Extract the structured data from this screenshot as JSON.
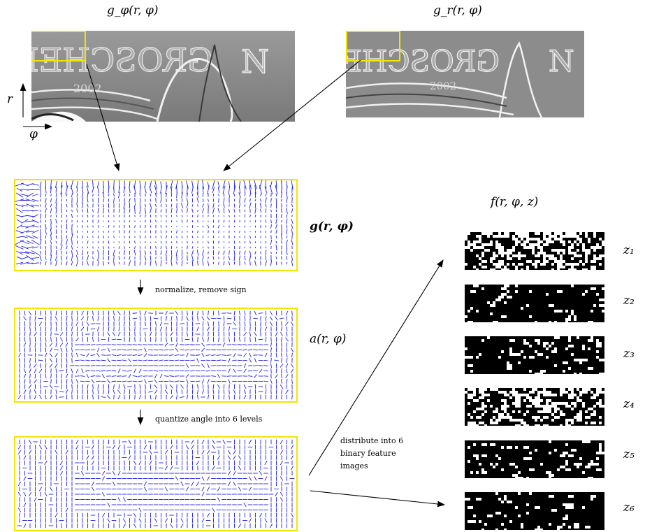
{
  "labels": {
    "g_phi": "g_φ(r, φ)",
    "g_r": "g_r(r, φ)",
    "axis_r": "r",
    "axis_phi": "φ",
    "g_vec": "g(r, φ)",
    "a_field": "a(r, φ)",
    "f_title": "f(r, φ, z)",
    "z_levels": [
      "z₁",
      "z₂",
      "z₃",
      "z₄",
      "z₅",
      "z₆"
    ]
  },
  "steps": {
    "normalize": "normalize, remove sign",
    "quantize": "quantize angle into 6 levels",
    "distribute_line1": "distribute into 6",
    "distribute_line2": "binary feature",
    "distribute_line3": "images"
  },
  "relief_text": {
    "left": "GROSCHEN",
    "right": "GROSCHEN",
    "year": "2002"
  },
  "colors": {
    "highlight": "#f2e600",
    "vectors": "#1f1fe6",
    "relief": "#8e8e8e"
  }
}
